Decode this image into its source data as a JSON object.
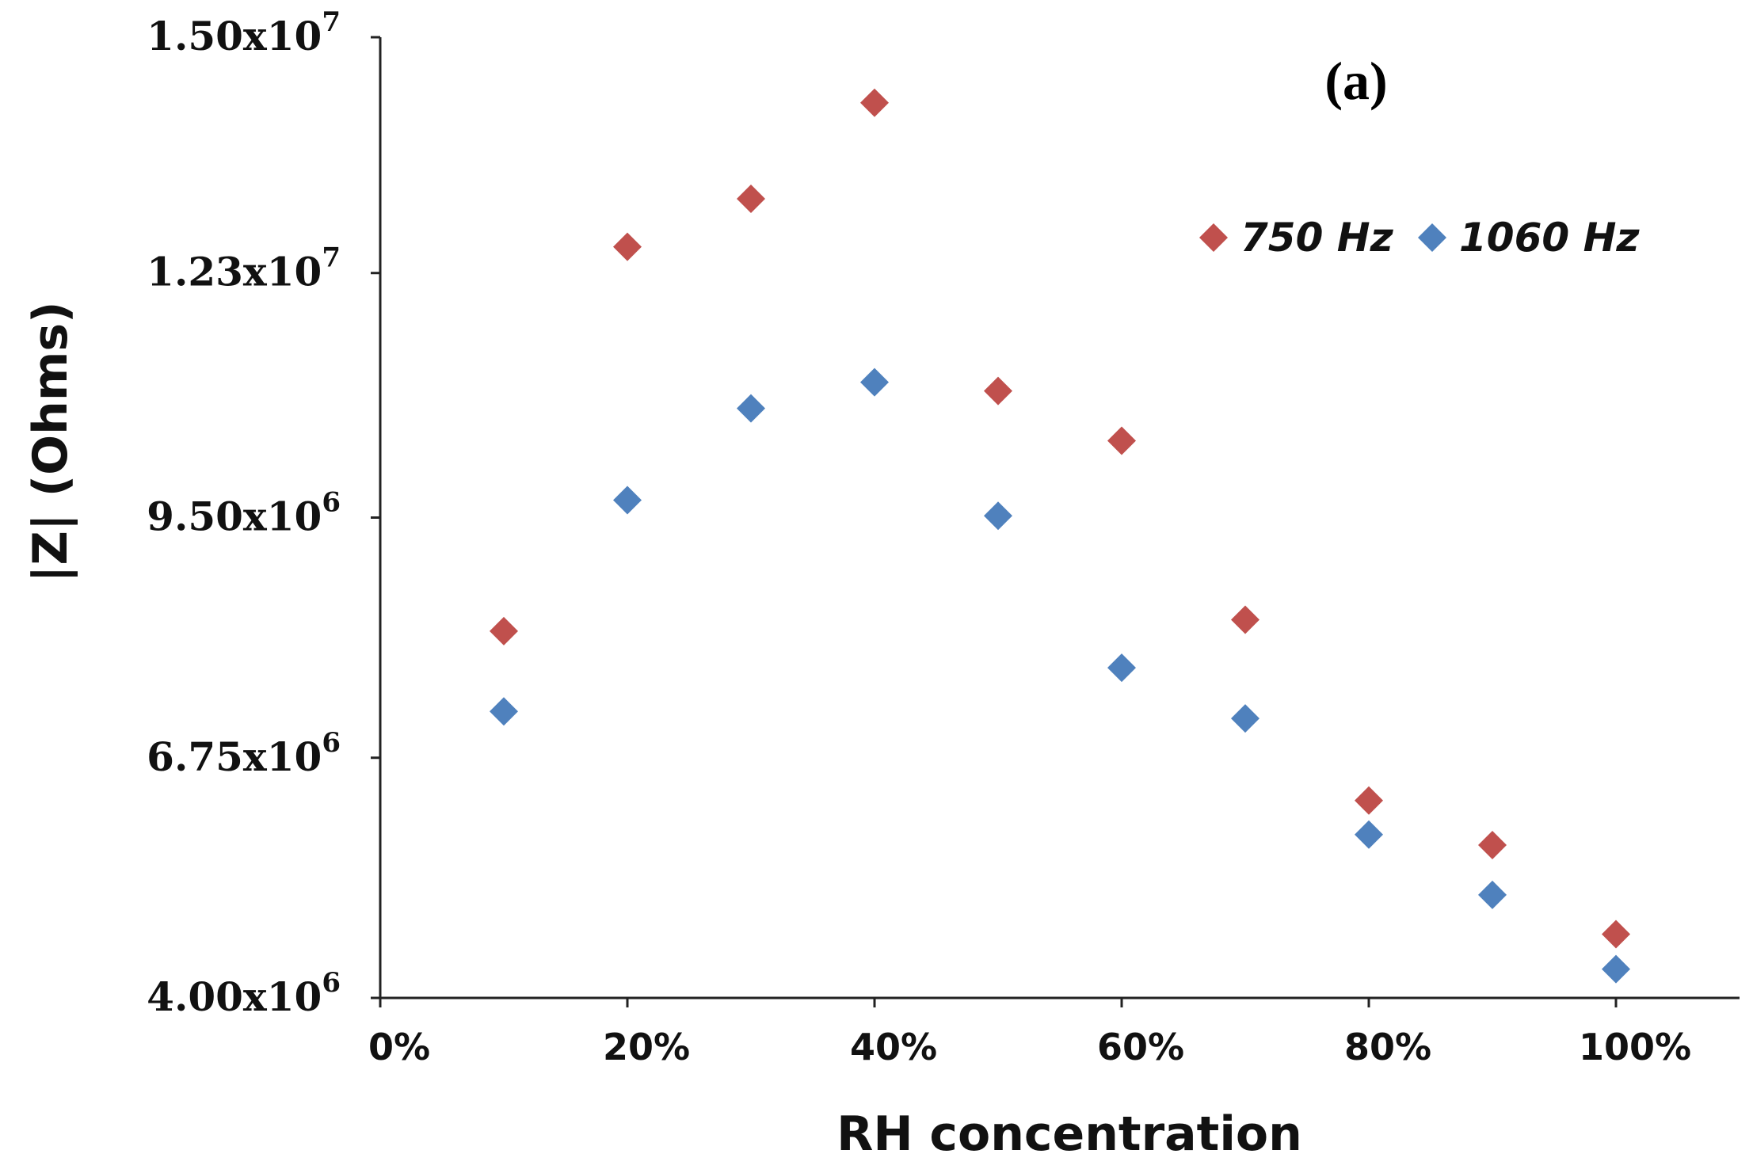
{
  "chart_data": {
    "type": "scatter",
    "panel_label": "(a)",
    "xlabel": "RH concentration",
    "ylabel": "|Z| (Ohms)",
    "x_ticks": [
      {
        "value": 0,
        "label": "0%"
      },
      {
        "value": 20,
        "label": "20%"
      },
      {
        "value": 40,
        "label": "40%"
      },
      {
        "value": 60,
        "label": "60%"
      },
      {
        "value": 80,
        "label": "80%"
      },
      {
        "value": 100,
        "label": "100%"
      }
    ],
    "y_ticks": [
      {
        "value": 4000000,
        "mantissa": "4.00x10",
        "exponent": "6"
      },
      {
        "value": 6750000,
        "mantissa": "6.75x10",
        "exponent": "6"
      },
      {
        "value": 9500000,
        "mantissa": "9.50x10",
        "exponent": "6"
      },
      {
        "value": 12300000,
        "mantissa": "1.23x10",
        "exponent": "7"
      },
      {
        "value": 15000000,
        "mantissa": "1.50x10",
        "exponent": "7"
      }
    ],
    "xlim": [
      0,
      110
    ],
    "ylim": [
      4000000,
      15000000
    ],
    "legend_position": "top-right",
    "series": [
      {
        "name": "750 Hz",
        "color": "#c0504d",
        "x": [
          10,
          20,
          30,
          40,
          50,
          60,
          70,
          80,
          90,
          100
        ],
        "y": [
          8200000,
          12600000,
          13150000,
          14250000,
          10950000,
          10380000,
          8330000,
          6260000,
          5750000,
          4730000
        ]
      },
      {
        "name": "1060 Hz",
        "color": "#4f81bd",
        "x": [
          10,
          20,
          30,
          40,
          50,
          60,
          70,
          80,
          90,
          100
        ],
        "y": [
          7280000,
          9700000,
          10750000,
          11050000,
          9520000,
          7780000,
          7200000,
          5870000,
          5180000,
          4330000
        ]
      }
    ]
  }
}
